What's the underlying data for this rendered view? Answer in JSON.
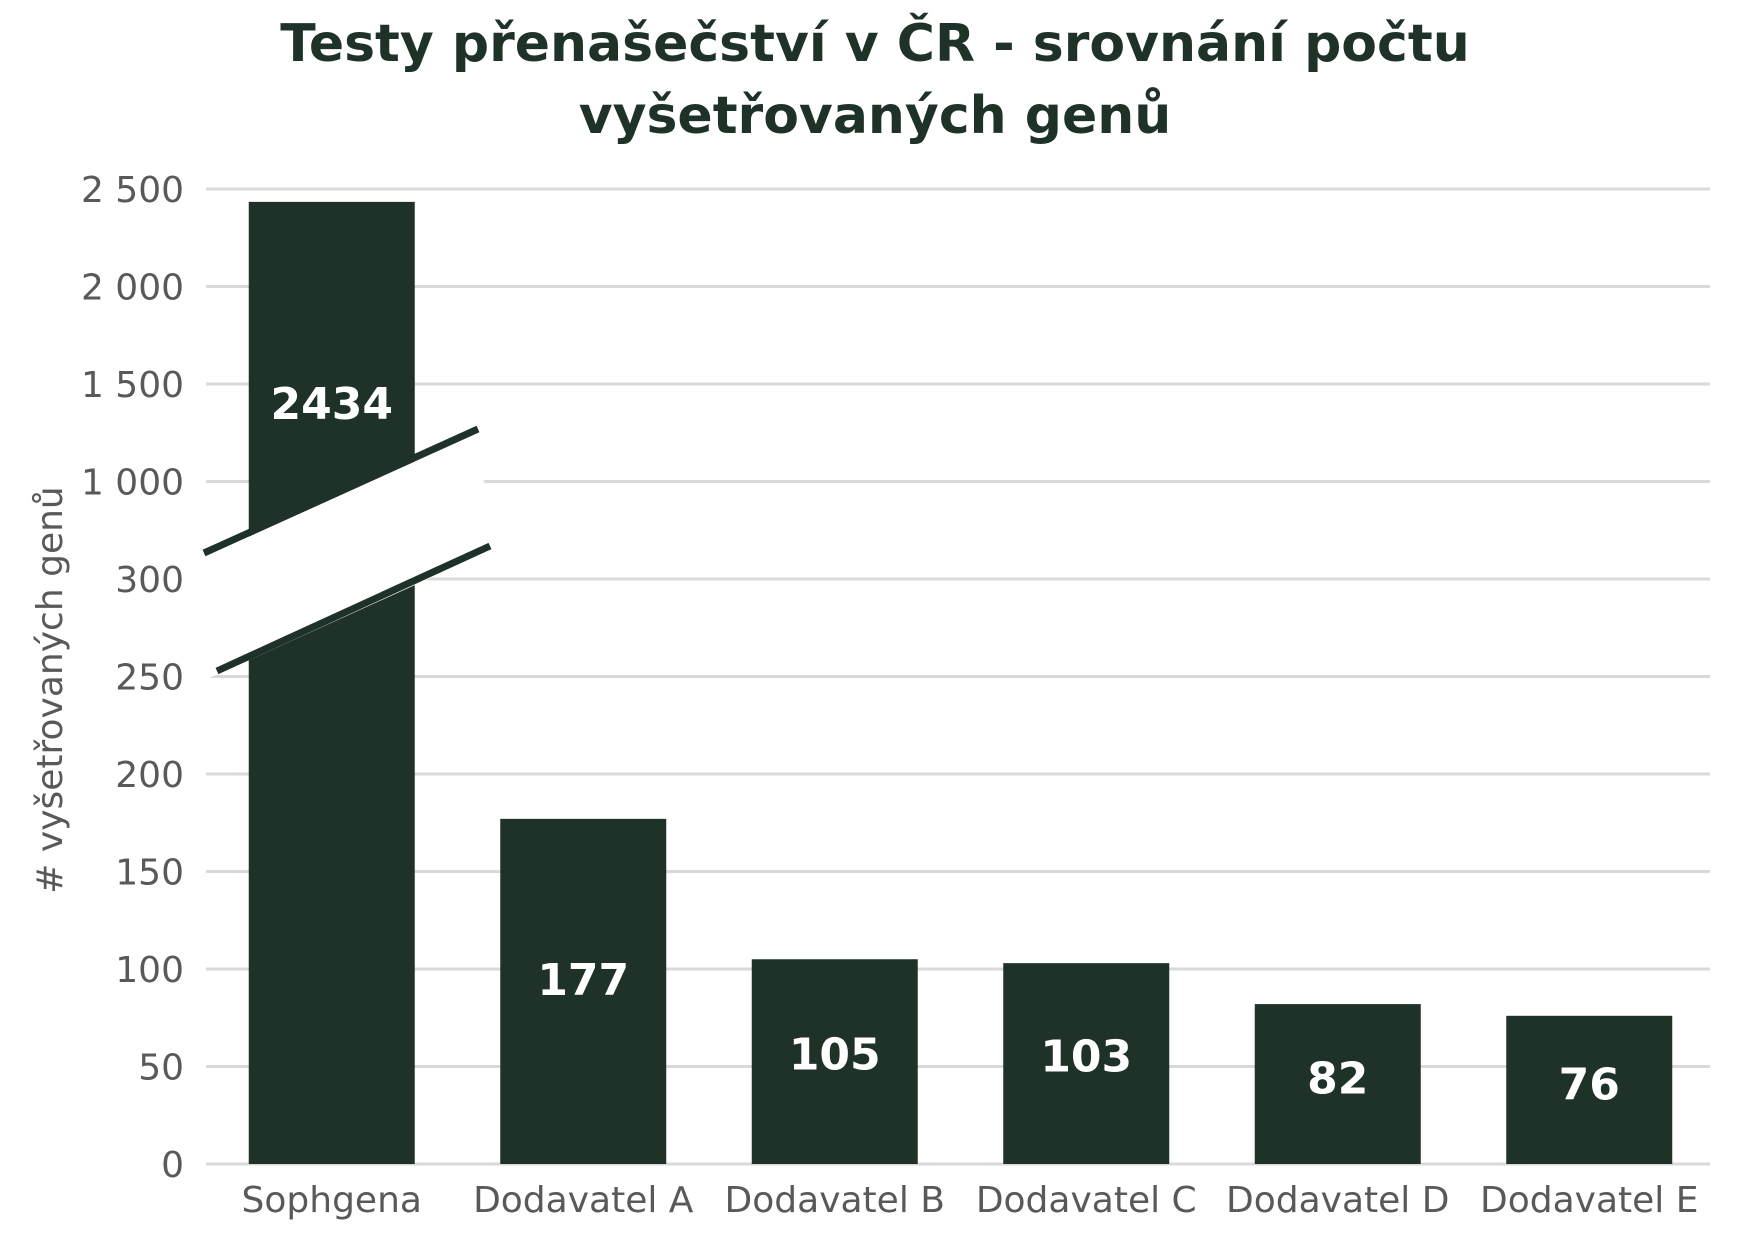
{
  "chart_data": {
    "type": "bar",
    "title_lines": [
      "Testy přenašečství v ČR - srovnání  počtu",
      "vyšetřovaných genů"
    ],
    "xlabel": "",
    "ylabel": "# vyšetřovaných genů",
    "categories": [
      "Sophgena",
      "Dodavatel A",
      "Dodavatel B",
      "Dodavatel C",
      "Dodavatel D",
      "Dodavatel E"
    ],
    "values": [
      2434,
      177,
      105,
      103,
      82,
      76
    ],
    "data_labels": [
      "2434",
      "177",
      "105",
      "103",
      "82",
      "76"
    ],
    "y_ticks": [
      0,
      50,
      100,
      150,
      200,
      250,
      300,
      1000,
      1500,
      2000,
      2500
    ],
    "y_tick_labels": [
      "0",
      "50",
      "100",
      "150",
      "200",
      "250",
      "300",
      "1 000",
      "1 500",
      "2 000",
      "2 500"
    ],
    "axis_break": {
      "lower_max": 300,
      "upper_min": 1000
    },
    "ylim": [
      0,
      2500
    ],
    "grid": true,
    "legend": "none",
    "colors": {
      "bar": "#1e3228",
      "bar_label": "#ffffff",
      "title": "#1e3228",
      "axis_text": "#595959",
      "grid": "#d9d9d9"
    }
  }
}
